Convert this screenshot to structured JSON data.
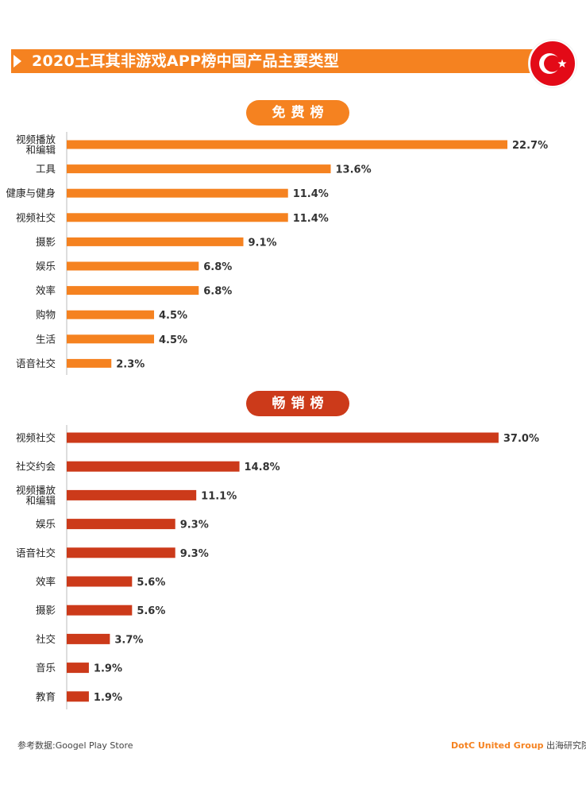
{
  "title": "2020土耳其非游戏APP榜中国产品主要类型",
  "flag_icon": "turkey-flag-icon",
  "colors": {
    "free_bar": "#f58220",
    "grossing_bar": "#cc3a1a",
    "title_bg": "#f58220"
  },
  "chart_data": [
    {
      "type": "bar",
      "orientation": "horizontal",
      "title": "免费榜",
      "categories": [
        "视频播放|和编辑",
        "工具",
        "健康与健身",
        "视频社交",
        "摄影",
        "娱乐",
        "效率",
        "购物",
        "生活",
        "语音社交"
      ],
      "values": [
        22.7,
        13.6,
        11.4,
        11.4,
        9.1,
        6.8,
        6.8,
        4.5,
        4.5,
        2.3
      ],
      "value_labels": [
        "22.7%",
        "13.6%",
        "11.4%",
        "11.4%",
        "9.1%",
        "6.8%",
        "6.8%",
        "4.5%",
        "4.5%",
        "2.3%"
      ],
      "unit": "%",
      "color": "#f58220"
    },
    {
      "type": "bar",
      "orientation": "horizontal",
      "title": "畅销榜",
      "categories": [
        "视频社交",
        "社交约会",
        "视频播放|和编辑",
        "娱乐",
        "语音社交",
        "效率",
        "摄影",
        "社交",
        "音乐",
        "教育"
      ],
      "values": [
        37.0,
        14.8,
        11.1,
        9.3,
        9.3,
        5.6,
        5.6,
        3.7,
        1.9,
        1.9
      ],
      "value_labels": [
        "37.0%",
        "14.8%",
        "11.1%",
        "9.3%",
        "9.3%",
        "5.6%",
        "5.6%",
        "3.7%",
        "1.9%",
        "1.9%"
      ],
      "unit": "%",
      "color": "#cc3a1a"
    }
  ],
  "footer": {
    "source": "参考数据:Googel Play Store",
    "brand": "DotC United Group",
    "brand_suffix": " 出海研究院"
  }
}
